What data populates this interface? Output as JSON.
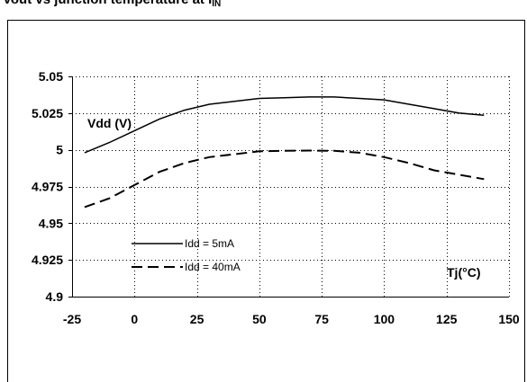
{
  "figure": {
    "title_main": "Vout vs junction temperature at I",
    "title_sub": "IN"
  },
  "chart_data": {
    "type": "line",
    "title": "",
    "ylabel": "Vdd (V)",
    "xlabel": "Tj(°C)",
    "xlim": [
      -25,
      150
    ],
    "ylim": [
      4.9,
      5.05
    ],
    "x_ticks": [
      -25,
      0,
      25,
      50,
      75,
      100,
      125,
      150
    ],
    "x_tick_labels": [
      "-25",
      "0",
      "25",
      "50",
      "75",
      "100",
      "125",
      "150"
    ],
    "y_ticks": [
      4.9,
      4.925,
      4.95,
      4.975,
      5,
      5.025,
      5.05
    ],
    "y_tick_labels": [
      "4.9",
      "4.925",
      "4.95",
      "4.975",
      "5",
      "5.025",
      "5.05"
    ],
    "grid": true,
    "legend_position": "bottom-left",
    "series": [
      {
        "name": "Idd = 5mA",
        "style": "solid",
        "color": "#000000",
        "x": [
          -20,
          -10,
          0,
          10,
          20,
          30,
          40,
          50,
          60,
          70,
          80,
          90,
          100,
          110,
          120,
          130,
          140
        ],
        "y": [
          4.998,
          5.005,
          5.013,
          5.021,
          5.027,
          5.031,
          5.033,
          5.035,
          5.0355,
          5.036,
          5.036,
          5.035,
          5.034,
          5.031,
          5.028,
          5.025,
          5.0235
        ]
      },
      {
        "name": "Idd = 40mA",
        "style": "dashed",
        "color": "#000000",
        "x": [
          -20,
          -10,
          0,
          10,
          20,
          30,
          40,
          50,
          60,
          70,
          80,
          90,
          100,
          110,
          120,
          130,
          140
        ],
        "y": [
          4.961,
          4.967,
          4.976,
          4.985,
          4.991,
          4.995,
          4.997,
          4.999,
          4.9993,
          4.9995,
          4.9993,
          4.998,
          4.995,
          4.991,
          4.986,
          4.983,
          4.98
        ]
      }
    ]
  }
}
